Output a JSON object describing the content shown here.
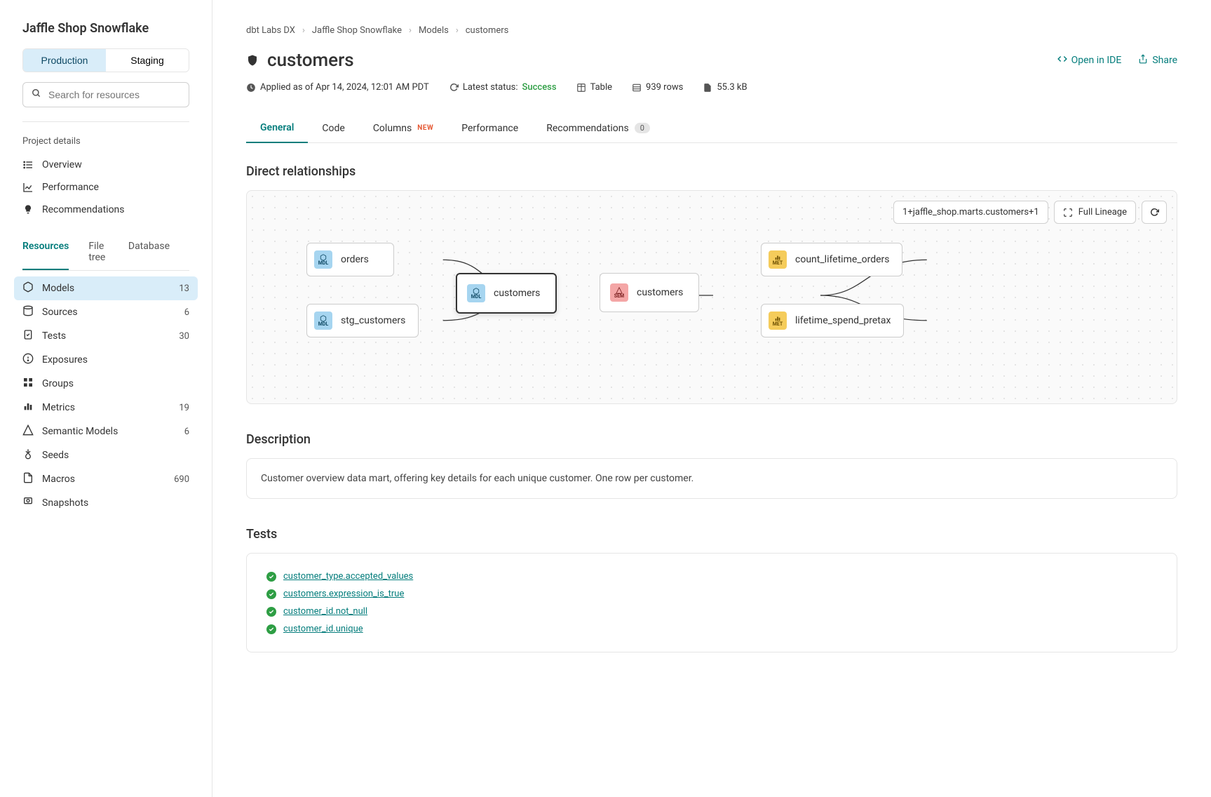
{
  "sidebar": {
    "project_title": "Jaffle Shop Snowflake",
    "env": {
      "production": "Production",
      "staging": "Staging"
    },
    "search_placeholder": "Search for resources",
    "section_label": "Project details",
    "nav": {
      "overview": "Overview",
      "performance": "Performance",
      "recommendations": "Recommendations"
    },
    "tabs": {
      "resources": "Resources",
      "filetree": "File tree",
      "database": "Database"
    },
    "resources": [
      {
        "label": "Models",
        "count": "13",
        "active": true
      },
      {
        "label": "Sources",
        "count": "6"
      },
      {
        "label": "Tests",
        "count": "30"
      },
      {
        "label": "Exposures",
        "count": ""
      },
      {
        "label": "Groups",
        "count": ""
      },
      {
        "label": "Metrics",
        "count": "19"
      },
      {
        "label": "Semantic Models",
        "count": "6"
      },
      {
        "label": "Seeds",
        "count": ""
      },
      {
        "label": "Macros",
        "count": "690"
      },
      {
        "label": "Snapshots",
        "count": ""
      }
    ]
  },
  "breadcrumb": [
    "dbt Labs DX",
    "Jaffle Shop Snowflake",
    "Models",
    "customers"
  ],
  "page": {
    "title": "customers",
    "open_ide": "Open in IDE",
    "share": "Share"
  },
  "meta": {
    "applied": "Applied as of Apr 14, 2024, 12:01 AM PDT",
    "latest_status_label": "Latest status:",
    "latest_status_value": "Success",
    "table": "Table",
    "rows": "939 rows",
    "size": "55.3 kB"
  },
  "main_tabs": {
    "general": "General",
    "code": "Code",
    "columns": "Columns",
    "columns_badge": "NEW",
    "performance": "Performance",
    "recommendations": "Recommendations",
    "recommendations_count": "0"
  },
  "sections": {
    "direct": "Direct relationships",
    "description": "Description",
    "tests": "Tests"
  },
  "lineage": {
    "selector": "1+jaffle_shop.marts.customers+1",
    "full_lineage": "Full Lineage",
    "nodes": {
      "orders": {
        "label": "orders",
        "type": "MDL"
      },
      "stg_customers": {
        "label": "stg_customers",
        "type": "MDL"
      },
      "customers_mdl": {
        "label": "customers",
        "type": "MDL"
      },
      "customers_sem": {
        "label": "customers",
        "type": "SEM"
      },
      "count_lifetime": {
        "label": "count_lifetime_orders",
        "type": "MET"
      },
      "lifetime_spend": {
        "label": "lifetime_spend_pretax",
        "type": "MET"
      }
    }
  },
  "description_text": "Customer overview data mart, offering key details for each unique customer. One row per customer.",
  "tests": [
    "customer_type.accepted_values",
    "customers.expression_is_true",
    "customer_id.not_null",
    "customer_id.unique"
  ],
  "colors": {
    "teal": "#047d7c",
    "success": "#2e9e44",
    "badge_new": "#e55934"
  }
}
